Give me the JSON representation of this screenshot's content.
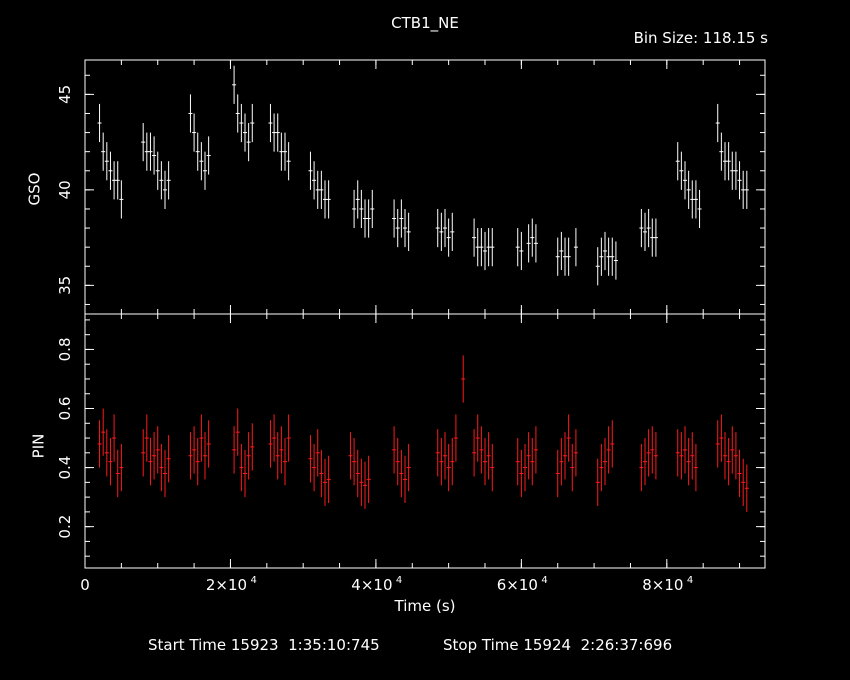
{
  "header": {
    "title": "CTB1_NE",
    "bin_size": "Bin Size: 118.15 s"
  },
  "footer": {
    "start": "Start Time 15923  1:35:10:745",
    "stop": "Stop Time 15924  2:26:37:696"
  },
  "colors": {
    "background": "#000000",
    "axes": "#ffffff",
    "gso": "#ffffff",
    "pin": "#ff1a1a"
  },
  "chart_data": [
    {
      "type": "scatter",
      "panel": "top",
      "ylabel": "GSO",
      "xlabel": "Time (s)",
      "xlim": [
        0,
        93500
      ],
      "ylim": [
        33.5,
        46.8
      ],
      "yticks": [
        35,
        40,
        45
      ],
      "series": [
        {
          "style": "points with vertical error bars",
          "color": "#ffffff",
          "points": [
            [
              2000,
              43.5
            ],
            [
              2500,
              42
            ],
            [
              3000,
              41.5
            ],
            [
              3500,
              41
            ],
            [
              4000,
              40.5
            ],
            [
              4500,
              40.5
            ],
            [
              5000,
              39.5
            ],
            [
              8000,
              42.5
            ],
            [
              8500,
              42
            ],
            [
              9000,
              42
            ],
            [
              9500,
              41.8
            ],
            [
              10000,
              41
            ],
            [
              10500,
              40.5
            ],
            [
              11000,
              40
            ],
            [
              11500,
              40.5
            ],
            [
              14500,
              44
            ],
            [
              15000,
              43
            ],
            [
              15500,
              42
            ],
            [
              16000,
              41.5
            ],
            [
              16500,
              41
            ],
            [
              17000,
              41.8
            ],
            [
              20500,
              45.5
            ],
            [
              21000,
              44
            ],
            [
              21500,
              43.5
            ],
            [
              22000,
              43
            ],
            [
              22500,
              42.5
            ],
            [
              23000,
              43.5
            ],
            [
              25500,
              43.5
            ],
            [
              26000,
              43
            ],
            [
              26500,
              43
            ],
            [
              27000,
              42
            ],
            [
              27500,
              42
            ],
            [
              28000,
              41.5
            ],
            [
              31000,
              41
            ],
            [
              31500,
              40.5
            ],
            [
              32000,
              40
            ],
            [
              32500,
              40
            ],
            [
              33000,
              39.5
            ],
            [
              33500,
              39.5
            ],
            [
              37000,
              39
            ],
            [
              37500,
              39.5
            ],
            [
              38000,
              39
            ],
            [
              38500,
              38.5
            ],
            [
              39000,
              38.5
            ],
            [
              39500,
              39
            ],
            [
              42500,
              38.5
            ],
            [
              43000,
              38
            ],
            [
              43500,
              38.5
            ],
            [
              44000,
              38
            ],
            [
              44500,
              37.8
            ],
            [
              48500,
              38
            ],
            [
              49000,
              37.8
            ],
            [
              49500,
              38
            ],
            [
              50000,
              37.5
            ],
            [
              50500,
              37.8
            ],
            [
              53500,
              37.5
            ],
            [
              54000,
              37
            ],
            [
              54500,
              37
            ],
            [
              55000,
              36.8
            ],
            [
              55500,
              37
            ],
            [
              56000,
              37
            ],
            [
              59500,
              37
            ],
            [
              60000,
              36.8
            ],
            [
              61000,
              37.2
            ],
            [
              61500,
              37.5
            ],
            [
              62000,
              37.2
            ],
            [
              65000,
              36.5
            ],
            [
              65500,
              36.8
            ],
            [
              66000,
              36.5
            ],
            [
              66500,
              36.5
            ],
            [
              67500,
              37
            ],
            [
              70500,
              36
            ],
            [
              71000,
              36.5
            ],
            [
              71500,
              36.8
            ],
            [
              72000,
              36.5
            ],
            [
              72500,
              36.5
            ],
            [
              73000,
              36.3
            ],
            [
              76500,
              38
            ],
            [
              77000,
              37.8
            ],
            [
              77500,
              38
            ],
            [
              78000,
              37.5
            ],
            [
              78500,
              37.5
            ],
            [
              81500,
              41.5
            ],
            [
              82000,
              41
            ],
            [
              82500,
              40.5
            ],
            [
              83000,
              40
            ],
            [
              83500,
              39.5
            ],
            [
              84000,
              39.5
            ],
            [
              84500,
              39
            ],
            [
              87000,
              43.5
            ],
            [
              87500,
              42
            ],
            [
              88000,
              41.5
            ],
            [
              88500,
              41.5
            ],
            [
              89000,
              41
            ],
            [
              89500,
              41
            ],
            [
              90000,
              40.5
            ],
            [
              90500,
              40
            ],
            [
              91000,
              40
            ]
          ]
        }
      ]
    },
    {
      "type": "scatter",
      "panel": "bottom",
      "ylabel": "PIN",
      "xlabel": "Time (s)",
      "xlim": [
        0,
        93500
      ],
      "ylim": [
        0.06,
        0.92
      ],
      "yticks": [
        0.2,
        0.4,
        0.6,
        0.8
      ],
      "xticks": [
        0,
        20000,
        40000,
        60000,
        80000
      ],
      "xtick_labels": [
        "0",
        "2×10",
        "4×10",
        "6×10",
        "8×10"
      ],
      "xtick_exponent": "4",
      "series": [
        {
          "style": "points with vertical error bars",
          "color": "#ff1a1a",
          "points": [
            [
              2000,
              0.48
            ],
            [
              2500,
              0.52
            ],
            [
              3000,
              0.45
            ],
            [
              3500,
              0.42
            ],
            [
              4000,
              0.5
            ],
            [
              4500,
              0.38
            ],
            [
              5000,
              0.4
            ],
            [
              8000,
              0.45
            ],
            [
              8500,
              0.5
            ],
            [
              9000,
              0.42
            ],
            [
              9500,
              0.44
            ],
            [
              10000,
              0.46
            ],
            [
              10500,
              0.4
            ],
            [
              11000,
              0.38
            ],
            [
              11500,
              0.43
            ],
            [
              14500,
              0.44
            ],
            [
              15000,
              0.46
            ],
            [
              15500,
              0.42
            ],
            [
              16000,
              0.5
            ],
            [
              16500,
              0.44
            ],
            [
              17000,
              0.48
            ],
            [
              20500,
              0.46
            ],
            [
              21000,
              0.52
            ],
            [
              21500,
              0.4
            ],
            [
              22000,
              0.38
            ],
            [
              22500,
              0.44
            ],
            [
              23000,
              0.47
            ],
            [
              25500,
              0.48
            ],
            [
              26000,
              0.5
            ],
            [
              26500,
              0.44
            ],
            [
              27000,
              0.46
            ],
            [
              27500,
              0.42
            ],
            [
              28000,
              0.5
            ],
            [
              31000,
              0.43
            ],
            [
              31500,
              0.4
            ],
            [
              32000,
              0.45
            ],
            [
              32500,
              0.38
            ],
            [
              33000,
              0.35
            ],
            [
              33500,
              0.36
            ],
            [
              36500,
              0.44
            ],
            [
              37000,
              0.42
            ],
            [
              37500,
              0.38
            ],
            [
              38000,
              0.35
            ],
            [
              38500,
              0.34
            ],
            [
              39000,
              0.36
            ],
            [
              42500,
              0.46
            ],
            [
              43000,
              0.42
            ],
            [
              43500,
              0.38
            ],
            [
              44000,
              0.36
            ],
            [
              44500,
              0.4
            ],
            [
              48500,
              0.45
            ],
            [
              49000,
              0.42
            ],
            [
              49500,
              0.44
            ],
            [
              50000,
              0.4
            ],
            [
              50500,
              0.42
            ],
            [
              51000,
              0.5
            ],
            [
              52000,
              0.7
            ],
            [
              53500,
              0.45
            ],
            [
              54000,
              0.5
            ],
            [
              54500,
              0.46
            ],
            [
              55000,
              0.42
            ],
            [
              55500,
              0.44
            ],
            [
              56000,
              0.4
            ],
            [
              59500,
              0.42
            ],
            [
              60000,
              0.38
            ],
            [
              60500,
              0.4
            ],
            [
              61000,
              0.44
            ],
            [
              61500,
              0.42
            ],
            [
              62000,
              0.46
            ],
            [
              65000,
              0.38
            ],
            [
              65500,
              0.42
            ],
            [
              66000,
              0.44
            ],
            [
              66500,
              0.5
            ],
            [
              67000,
              0.4
            ],
            [
              67500,
              0.45
            ],
            [
              70500,
              0.35
            ],
            [
              71000,
              0.4
            ],
            [
              71500,
              0.42
            ],
            [
              72000,
              0.46
            ],
            [
              72500,
              0.48
            ],
            [
              76500,
              0.4
            ],
            [
              77000,
              0.42
            ],
            [
              77500,
              0.45
            ],
            [
              78000,
              0.46
            ],
            [
              78500,
              0.44
            ],
            [
              81500,
              0.45
            ],
            [
              82000,
              0.44
            ],
            [
              82500,
              0.46
            ],
            [
              83000,
              0.42
            ],
            [
              83500,
              0.44
            ],
            [
              84000,
              0.4
            ],
            [
              87000,
              0.48
            ],
            [
              87500,
              0.5
            ],
            [
              88000,
              0.44
            ],
            [
              88500,
              0.42
            ],
            [
              89000,
              0.46
            ],
            [
              89500,
              0.44
            ],
            [
              90000,
              0.38
            ],
            [
              90500,
              0.35
            ],
            [
              91000,
              0.33
            ]
          ]
        }
      ]
    }
  ]
}
